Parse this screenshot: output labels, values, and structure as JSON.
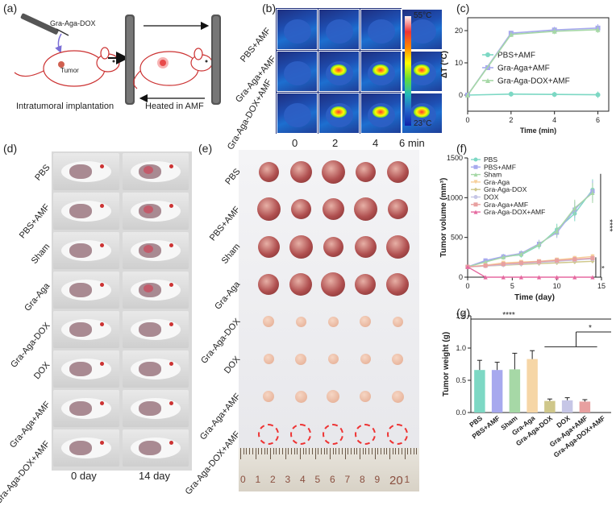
{
  "panel_labels": [
    "(a)",
    "(b)",
    "(c)",
    "(d)",
    "(e)",
    "(f)",
    "(g)"
  ],
  "panel_a": {
    "needle_label": "Gra-Aga-DOX",
    "tumor_label": "Tumor",
    "caption_left": "Intratumoral implantation",
    "caption_right": "Heated in AMF"
  },
  "panel_b": {
    "rows": [
      "PBS+AMF",
      "Gra-Aga+AMF",
      "Gra-Aga-DOX+AMF"
    ],
    "times": [
      "0",
      "2",
      "4",
      "6 min"
    ],
    "scale_max": "55°C",
    "scale_min": "23°C",
    "hotspot_intensity": [
      [
        0,
        0,
        0,
        0
      ],
      [
        0,
        1,
        1,
        1
      ],
      [
        0,
        1,
        1,
        1
      ]
    ]
  },
  "chart_data": [
    {
      "id": "c",
      "type": "line",
      "xlabel": "Time (min)",
      "ylabel": "ΔT (°C)",
      "x": [
        0,
        2,
        4,
        6
      ],
      "xticks": [
        "0",
        "2",
        "4",
        "6"
      ],
      "yticks": [
        "0",
        "10",
        "20"
      ],
      "xlim": [
        0,
        6.5
      ],
      "ylim": [
        -5,
        24
      ],
      "series": [
        {
          "name": "PBS+AMF",
          "color": "#7dd8c4",
          "marker": "circle",
          "values": [
            0,
            0.3,
            0.2,
            0.1
          ],
          "err": [
            0,
            0.8,
            0.8,
            1.0
          ]
        },
        {
          "name": "Gra-Aga+AMF",
          "color": "#a7a9ee",
          "marker": "square",
          "values": [
            0,
            19.2,
            20.2,
            20.8
          ],
          "err": [
            0,
            0.8,
            1.0,
            1.2
          ]
        },
        {
          "name": "Gra-Aga-DOX+AMF",
          "color": "#a6d8a6",
          "marker": "triangle",
          "values": [
            0,
            18.8,
            19.8,
            20.3
          ],
          "err": [
            0,
            0.8,
            0.9,
            1.0
          ]
        }
      ]
    },
    {
      "id": "f",
      "type": "line",
      "xlabel": "Time (day)",
      "ylabel": "Tumor volume (mm³)",
      "x": [
        0,
        2,
        4,
        6,
        8,
        10,
        12,
        14
      ],
      "xticks": [
        "0",
        "5",
        "10",
        "15"
      ],
      "yticks": [
        "0",
        "500",
        "1000",
        "1500"
      ],
      "xlim": [
        0,
        15
      ],
      "ylim": [
        0,
        1500
      ],
      "significance": [
        "****",
        "*"
      ],
      "series": [
        {
          "name": "PBS",
          "color": "#7dd8c4",
          "marker": "circle",
          "values": [
            130,
            200,
            260,
            280,
            400,
            600,
            800,
            1100
          ]
        },
        {
          "name": "PBS+AMF",
          "color": "#a7a9ee",
          "marker": "square",
          "values": [
            130,
            210,
            260,
            300,
            420,
            560,
            850,
            1080
          ]
        },
        {
          "name": "Sham",
          "color": "#a6d8a6",
          "marker": "triangle",
          "values": [
            130,
            190,
            250,
            290,
            410,
            580,
            870,
            1060
          ]
        },
        {
          "name": "Gra-Aga",
          "color": "#f6cf9a",
          "marker": "triangle-down",
          "values": [
            130,
            150,
            180,
            190,
            200,
            220,
            240,
            260
          ]
        },
        {
          "name": "Gra-Aga-DOX",
          "color": "#cfc78a",
          "marker": "diamond",
          "values": [
            130,
            140,
            150,
            160,
            170,
            180,
            190,
            200
          ]
        },
        {
          "name": "DOX",
          "color": "#c6c6e6",
          "marker": "circle",
          "values": [
            130,
            140,
            155,
            170,
            185,
            200,
            215,
            230
          ]
        },
        {
          "name": "Gra-Aga+AMF",
          "color": "#e8a0a0",
          "marker": "square",
          "values": [
            130,
            145,
            165,
            180,
            195,
            210,
            225,
            240
          ]
        },
        {
          "name": "Gra-Aga-DOX+AMF",
          "color": "#e56aa0",
          "marker": "triangle",
          "values": [
            130,
            0,
            0,
            0,
            0,
            0,
            0,
            0
          ]
        }
      ]
    },
    {
      "id": "g",
      "type": "bar",
      "ylabel": "Tumor weight (g)",
      "categories": [
        "PBS",
        "PBS+AMF",
        "Sham",
        "Gra-Aga",
        "Gra-Aga-DOX",
        "DOX",
        "Gra-Aga+AMF",
        "Gra-Aga-DOX+AMF"
      ],
      "values": [
        0.66,
        0.66,
        0.67,
        0.83,
        0.18,
        0.19,
        0.17,
        0.0
      ],
      "err": [
        0.15,
        0.12,
        0.25,
        0.13,
        0.03,
        0.04,
        0.03,
        0
      ],
      "colors": [
        "#7dd8c4",
        "#a7a9ee",
        "#a6d8a6",
        "#f6d6a6",
        "#cfc78a",
        "#c6c6e6",
        "#e8a0a0",
        "#e56aa0"
      ],
      "yticks": [
        "0.0",
        "0.5",
        "1.0",
        "1.5"
      ],
      "ylim": [
        0,
        1.5
      ],
      "significance": [
        "****",
        "*"
      ]
    }
  ],
  "panel_d": {
    "rows": [
      "PBS",
      "PBS+AMF",
      "Sham",
      "Gra-Aga",
      "Gra-Aga-DOX",
      "DOX",
      "Gra-Aga+AMF",
      "Gra-Aga-DOX+AMF"
    ],
    "col_labels": [
      "0 day",
      "14 day"
    ]
  },
  "panel_e": {
    "rows": [
      "PBS",
      "PBS+AMF",
      "Sham",
      "Gra-Aga",
      "Gra-Aga-DOX",
      "DOX",
      "Gra-Aga+AMF",
      "Gra-Aga-DOX+AMF"
    ],
    "tumor_sizes": [
      1.0,
      1.0,
      1.0,
      1.05,
      0.5,
      0.5,
      0.55,
      0
    ],
    "ruler_numbers": [
      "0",
      "1",
      "2",
      "3",
      "4",
      "5",
      "6",
      "7",
      "8",
      "9",
      "20",
      "1"
    ]
  }
}
